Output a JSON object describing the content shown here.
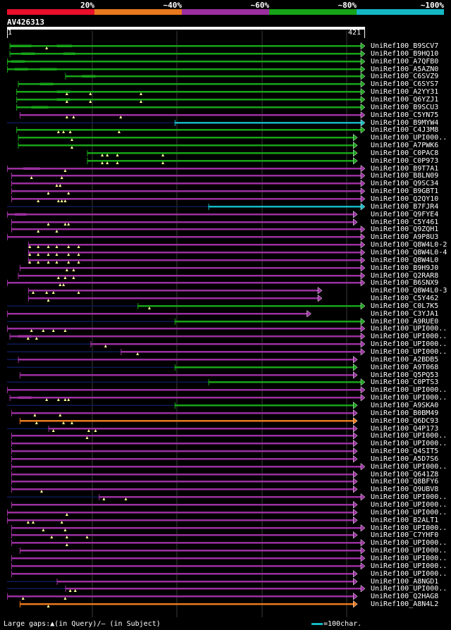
{
  "legend": [
    {
      "label": "20%",
      "color": "#e8102a"
    },
    {
      "label": "~40%",
      "color": "#e8781c"
    },
    {
      "label": "~60%",
      "color": "#9b2fa0"
    },
    {
      "label": "~80%",
      "color": "#17a317"
    },
    {
      "label": "~100%",
      "color": "#14b8c4"
    }
  ],
  "query": {
    "id": "AV426313",
    "start": "1",
    "end": "421",
    "length": 421
  },
  "colors": {
    "dark_line": "#0d1a55",
    "triangle": "#ffff99"
  },
  "footer": {
    "gaps_text": "Large gaps:▲(in Query)/– (in Subject)",
    "scale_text": "=100char."
  },
  "hits": [
    {
      "name": "UniRef100_B9SCV7",
      "color": "green",
      "q_start": 4,
      "q_end": 421,
      "thin": [
        [
          4,
          30
        ],
        [
          60,
          78
        ]
      ],
      "tri": [
        48
      ]
    },
    {
      "name": "UniRef100_B9HQ10",
      "color": "green",
      "q_start": 4,
      "q_end": 421,
      "thin": [
        [
          18,
          34
        ],
        [
          68,
          82
        ]
      ],
      "tri": []
    },
    {
      "name": "UniRef100_A7QFB0",
      "color": "green",
      "q_start": 1,
      "q_end": 421,
      "thin": [
        [
          6,
          22
        ]
      ],
      "tri": []
    },
    {
      "name": "UniRef100_A5AZN0",
      "color": "green",
      "q_start": 1,
      "q_end": 421,
      "thin": [
        [
          10,
          26
        ],
        [
          40,
          60
        ]
      ],
      "tri": []
    },
    {
      "name": "UniRef100_C6SVZ9",
      "color": "green",
      "q_start": 70,
      "q_end": 421,
      "thin": [
        [
          90,
          106
        ]
      ],
      "tri": []
    },
    {
      "name": "UniRef100_C6SYS7",
      "color": "green",
      "q_start": 14,
      "q_end": 421,
      "thin": [
        [
          40,
          56
        ]
      ],
      "tri": []
    },
    {
      "name": "UniRef100_A2YY31",
      "color": "green",
      "q_start": 12,
      "q_end": 421,
      "thin": [
        [
          60,
          76
        ]
      ],
      "tri": [
        72,
        100,
        160
      ]
    },
    {
      "name": "UniRef100_Q6YZJ1",
      "color": "green",
      "q_start": 12,
      "q_end": 421,
      "thin": [
        [
          60,
          76
        ]
      ],
      "tri": [
        72,
        100,
        160
      ]
    },
    {
      "name": "UniRef100_B9SCU3",
      "color": "green",
      "q_start": 12,
      "q_end": 421,
      "thin": [
        [
          30,
          50
        ]
      ],
      "tri": []
    },
    {
      "name": "UniRef100_C5YN75",
      "color": "purple",
      "q_start": 16,
      "q_end": 421,
      "thin": [],
      "tri": [
        72,
        80,
        136
      ]
    },
    {
      "name": "UniRef100_B9MYW4",
      "color": "cyan",
      "q_start": 200,
      "q_end": 421,
      "thin": [],
      "tri": [],
      "dark": [
        [
          1,
          200
        ]
      ]
    },
    {
      "name": "UniRef100_C4J3M8",
      "color": "green",
      "q_start": 12,
      "q_end": 421,
      "thin": [],
      "tri": [
        62,
        68,
        76,
        134
      ]
    },
    {
      "name": "UniRef100_UPI000..",
      "color": "green",
      "q_start": 14,
      "q_end": 412,
      "thin": [],
      "tri": [
        78
      ]
    },
    {
      "name": "UniRef100_A7PWK6",
      "color": "green",
      "q_start": 14,
      "q_end": 412,
      "thin": [],
      "tri": [
        78
      ]
    },
    {
      "name": "UniRef100_C0PAC8",
      "color": "green",
      "q_start": 96,
      "q_end": 412,
      "thin": [],
      "tri": [
        114,
        120,
        132,
        186
      ]
    },
    {
      "name": "UniRef100_C0P973",
      "color": "green",
      "q_start": 96,
      "q_end": 412,
      "thin": [],
      "tri": [
        114,
        120,
        132,
        186
      ]
    },
    {
      "name": "UniRef100_B9T7A1",
      "color": "purple",
      "q_start": 1,
      "q_end": 421,
      "thin": [
        [
          20,
          40
        ]
      ],
      "tri": [
        70
      ]
    },
    {
      "name": "UniRef100_B8LN09",
      "color": "purple",
      "q_start": 6,
      "q_end": 421,
      "thin": [],
      "tri": [
        30,
        66
      ]
    },
    {
      "name": "UniRef100_Q9SC34",
      "color": "purple",
      "q_start": 6,
      "q_end": 421,
      "thin": [],
      "tri": [
        60,
        64
      ]
    },
    {
      "name": "UniRef100_B9GBT1",
      "color": "purple",
      "q_start": 6,
      "q_end": 421,
      "thin": [],
      "tri": [
        50,
        74
      ]
    },
    {
      "name": "UniRef100_Q2QY10",
      "color": "purple",
      "q_start": 6,
      "q_end": 421,
      "thin": [],
      "tri": [
        38,
        62,
        66,
        70
      ]
    },
    {
      "name": "UniRef100_B7FJR4",
      "color": "cyan",
      "q_start": 240,
      "q_end": 421,
      "thin": [],
      "tri": [],
      "dark": [
        [
          1,
          240
        ]
      ]
    },
    {
      "name": "UniRef100_Q9FYE4",
      "color": "purple",
      "q_start": 1,
      "q_end": 412,
      "thin": [
        [
          10,
          24
        ]
      ],
      "tri": []
    },
    {
      "name": "UniRef100_C5Y461",
      "color": "purple",
      "q_start": 6,
      "q_end": 412,
      "thin": [],
      "tri": [
        50,
        70,
        74
      ]
    },
    {
      "name": "UniRef100_Q9ZQH1",
      "color": "purple",
      "q_start": 6,
      "q_end": 421,
      "thin": [],
      "tri": [
        38,
        60
      ]
    },
    {
      "name": "UniRef100_A9P8U3",
      "color": "purple",
      "q_start": 1,
      "q_end": 421,
      "thin": [],
      "tri": [],
      "dark": [
        [
          1,
          16
        ]
      ]
    },
    {
      "name": "UniRef100_Q8W4L0-2",
      "color": "purple",
      "q_start": 26,
      "q_end": 421,
      "thin": [],
      "tri": [
        28,
        38,
        50,
        60,
        74,
        86
      ]
    },
    {
      "name": "UniRef100_Q8W4L0-4",
      "color": "purple",
      "q_start": 26,
      "q_end": 421,
      "thin": [],
      "tri": [
        28,
        38,
        50,
        60,
        74,
        86
      ]
    },
    {
      "name": "UniRef100_Q8W4L0",
      "color": "purple",
      "q_start": 26,
      "q_end": 421,
      "thin": [],
      "tri": [
        28,
        38,
        50,
        60,
        74,
        86
      ]
    },
    {
      "name": "UniRef100_B9H9J0",
      "color": "purple",
      "q_start": 16,
      "q_end": 421,
      "thin": [],
      "tri": [
        72,
        80
      ]
    },
    {
      "name": "UniRef100_Q2RAR8",
      "color": "purple",
      "q_start": 14,
      "q_end": 421,
      "thin": [],
      "tri": [
        62,
        70,
        80
      ]
    },
    {
      "name": "UniRef100_B6SNX9",
      "color": "purple",
      "q_start": 1,
      "q_end": 421,
      "thin": [],
      "tri": [
        64,
        68
      ]
    },
    {
      "name": "UniRef100_Q8W4L0-3",
      "color": "purple",
      "q_start": 26,
      "q_end": 370,
      "thin": [],
      "tri": [
        32,
        48,
        56,
        86
      ]
    },
    {
      "name": "UniRef100_C5Y462",
      "color": "purple",
      "q_start": 26,
      "q_end": 370,
      "thin": [],
      "tri": [
        50
      ]
    },
    {
      "name": "UniRef100_C0L7K5",
      "color": "green",
      "q_start": 156,
      "q_end": 421,
      "thin": [],
      "tri": [
        170
      ],
      "dark": [
        [
          1,
          156
        ]
      ]
    },
    {
      "name": "UniRef100_C3YJA1",
      "color": "purple",
      "q_start": 1,
      "q_end": 357,
      "thin": [],
      "tri": [],
      "dark": [
        [
          1,
          10
        ]
      ]
    },
    {
      "name": "UniRef100_A9RUE0",
      "color": "green",
      "q_start": 200,
      "q_end": 421,
      "thin": [],
      "tri": [],
      "dark": [
        [
          1,
          200
        ]
      ]
    },
    {
      "name": "UniRef100_UPI000..",
      "color": "purple",
      "q_start": 1,
      "q_end": 421,
      "thin": [],
      "tri": [
        30,
        44,
        56,
        70
      ]
    },
    {
      "name": "UniRef100_UPI000..",
      "color": "purple",
      "q_start": 4,
      "q_end": 421,
      "thin": [
        [
          14,
          30
        ]
      ],
      "tri": [
        26,
        36
      ]
    },
    {
      "name": "UniRef100_UPI000..",
      "color": "purple",
      "q_start": 100,
      "q_end": 421,
      "thin": [],
      "tri": [
        118
      ],
      "dark": [
        [
          1,
          100
        ]
      ]
    },
    {
      "name": "UniRef100_UPI000..",
      "color": "purple",
      "q_start": 136,
      "q_end": 421,
      "thin": [],
      "tri": [
        156
      ],
      "dark": [
        [
          1,
          136
        ]
      ]
    },
    {
      "name": "UniRef100_A2BDB5",
      "color": "purple",
      "q_start": 14,
      "q_end": 412,
      "thin": [],
      "tri": [],
      "dark": [
        [
          1,
          14
        ]
      ]
    },
    {
      "name": "UniRef100_A9T068",
      "color": "green",
      "q_start": 200,
      "q_end": 412,
      "thin": [],
      "tri": [],
      "dark": [
        [
          1,
          200
        ]
      ]
    },
    {
      "name": "UniRef100_Q5PQ53",
      "color": "purple",
      "q_start": 16,
      "q_end": 412,
      "thin": [],
      "tri": []
    },
    {
      "name": "UniRef100_C0PTS3",
      "color": "green",
      "q_start": 240,
      "q_end": 421,
      "thin": [],
      "tri": [],
      "dark": [
        [
          1,
          240
        ]
      ]
    },
    {
      "name": "UniRef100_UPI000..",
      "color": "purple",
      "q_start": 1,
      "q_end": 421,
      "thin": [],
      "tri": [],
      "dark": [
        [
          1,
          30
        ]
      ]
    },
    {
      "name": "UniRef100_UPI000..",
      "color": "purple",
      "q_start": 4,
      "q_end": 421,
      "thin": [
        [
          14,
          30
        ]
      ],
      "tri": [
        48,
        62,
        70,
        74
      ]
    },
    {
      "name": "UniRef100_A9SKA0",
      "color": "green",
      "q_start": 200,
      "q_end": 412,
      "thin": [],
      "tri": [],
      "dark": [
        [
          1,
          200
        ]
      ]
    },
    {
      "name": "UniRef100_B0BM49",
      "color": "purple",
      "q_start": 6,
      "q_end": 412,
      "thin": [],
      "tri": [
        34,
        64
      ]
    },
    {
      "name": "UniRef100_Q6DC93",
      "color": "orange",
      "q_start": 16,
      "q_end": 412,
      "thin": [],
      "tri": [
        36,
        68,
        78
      ]
    },
    {
      "name": "UniRef100_Q4P173",
      "color": "purple",
      "q_start": 50,
      "q_end": 412,
      "thin": [],
      "tri": [
        56,
        98,
        106
      ],
      "dark": [
        [
          1,
          50
        ]
      ]
    },
    {
      "name": "UniRef100_UPI000..",
      "color": "purple",
      "q_start": 6,
      "q_end": 412,
      "thin": [],
      "tri": [
        96
      ]
    },
    {
      "name": "UniRef100_UPI000..",
      "color": "purple",
      "q_start": 6,
      "q_end": 412,
      "thin": [],
      "tri": []
    },
    {
      "name": "UniRef100_Q4SIT5",
      "color": "purple",
      "q_start": 6,
      "q_end": 412,
      "thin": [],
      "tri": []
    },
    {
      "name": "UniRef100_A5D7S6",
      "color": "purple",
      "q_start": 6,
      "q_end": 412,
      "thin": [],
      "tri": []
    },
    {
      "name": "UniRef100_UPI000..",
      "color": "purple",
      "q_start": 6,
      "q_end": 421,
      "thin": [],
      "tri": []
    },
    {
      "name": "UniRef100_Q641Z8",
      "color": "purple",
      "q_start": 6,
      "q_end": 412,
      "thin": [],
      "tri": []
    },
    {
      "name": "UniRef100_Q8BFY6",
      "color": "purple",
      "q_start": 6,
      "q_end": 412,
      "thin": [],
      "tri": []
    },
    {
      "name": "UniRef100_Q9UBV8",
      "color": "purple",
      "q_start": 6,
      "q_end": 412,
      "thin": [],
      "tri": [
        42
      ]
    },
    {
      "name": "UniRef100_UPI000..",
      "color": "purple",
      "q_start": 110,
      "q_end": 421,
      "thin": [],
      "tri": [
        116,
        142
      ],
      "dark": [
        [
          1,
          110
        ]
      ]
    },
    {
      "name": "UniRef100_UPI000..",
      "color": "purple",
      "q_start": 6,
      "q_end": 412,
      "thin": [],
      "tri": []
    },
    {
      "name": "UniRef100_UPI000..",
      "color": "purple",
      "q_start": 1,
      "q_end": 412,
      "thin": [],
      "tri": [
        72
      ]
    },
    {
      "name": "UniRef100_B2ALT1",
      "color": "purple",
      "q_start": 1,
      "q_end": 412,
      "thin": [],
      "tri": [
        26,
        32,
        66
      ]
    },
    {
      "name": "UniRef100_UPI000..",
      "color": "purple",
      "q_start": 6,
      "q_end": 421,
      "thin": [],
      "tri": [
        44,
        70
      ]
    },
    {
      "name": "UniRef100_C7YHF0",
      "color": "purple",
      "q_start": 6,
      "q_end": 412,
      "thin": [],
      "tri": [
        54,
        72,
        96
      ]
    },
    {
      "name": "UniRef100_UPI000..",
      "color": "purple",
      "q_start": 6,
      "q_end": 421,
      "thin": [],
      "tri": [
        72
      ]
    },
    {
      "name": "UniRef100_UPI000..",
      "color": "purple",
      "q_start": 16,
      "q_end": 421,
      "thin": [],
      "tri": []
    },
    {
      "name": "UniRef100_UPI000..",
      "color": "purple",
      "q_start": 6,
      "q_end": 421,
      "thin": [],
      "tri": []
    },
    {
      "name": "UniRef100_UPI000..",
      "color": "purple",
      "q_start": 6,
      "q_end": 421,
      "thin": [],
      "tri": []
    },
    {
      "name": "UniRef100_UPI000..",
      "color": "purple",
      "q_start": 6,
      "q_end": 412,
      "thin": [],
      "tri": []
    },
    {
      "name": "UniRef100_A8NGD1",
      "color": "purple",
      "q_start": 60,
      "q_end": 412,
      "thin": [],
      "tri": [],
      "dark": [
        [
          1,
          60
        ]
      ]
    },
    {
      "name": "UniRef100_UPI000..",
      "color": "purple",
      "q_start": 70,
      "q_end": 421,
      "thin": [],
      "tri": [
        76,
        82
      ],
      "dark": [
        [
          1,
          70
        ]
      ]
    },
    {
      "name": "UniRef100_Q2HAG8",
      "color": "purple",
      "q_start": 1,
      "q_end": 412,
      "thin": [],
      "tri": [
        20,
        70
      ]
    },
    {
      "name": "UniRef100_A8N4L2",
      "color": "orange",
      "q_start": 16,
      "q_end": 412,
      "thin": [],
      "tri": [
        50
      ]
    }
  ]
}
